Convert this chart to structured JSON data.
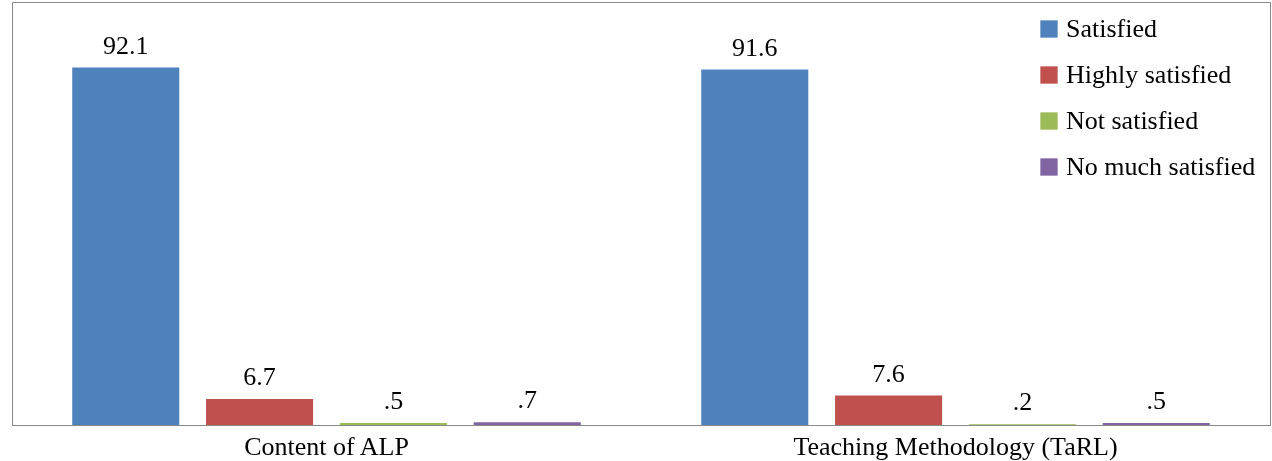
{
  "chart_data": {
    "type": "bar",
    "categories": [
      "Content of ALP",
      "Teaching Methodology (TaRL)"
    ],
    "series": [
      {
        "name": "Satisfied",
        "color": "#4f81bd",
        "values": [
          92.1,
          91.6
        ],
        "value_labels": [
          "92.1",
          "91.6"
        ]
      },
      {
        "name": "Highly satisfied",
        "color": "#c0504d",
        "values": [
          6.7,
          7.6
        ],
        "value_labels": [
          "6.7",
          "7.6"
        ]
      },
      {
        "name": "Not satisfied",
        "color": "#9bbb59",
        "values": [
          0.5,
          0.2
        ],
        "value_labels": [
          ".5",
          ".2"
        ]
      },
      {
        "name": "No much satisfied",
        "color": "#8064a2",
        "values": [
          0.7,
          0.5
        ],
        "value_labels": [
          ".7",
          ".5"
        ]
      }
    ],
    "legend": "top right",
    "grid": false
  }
}
